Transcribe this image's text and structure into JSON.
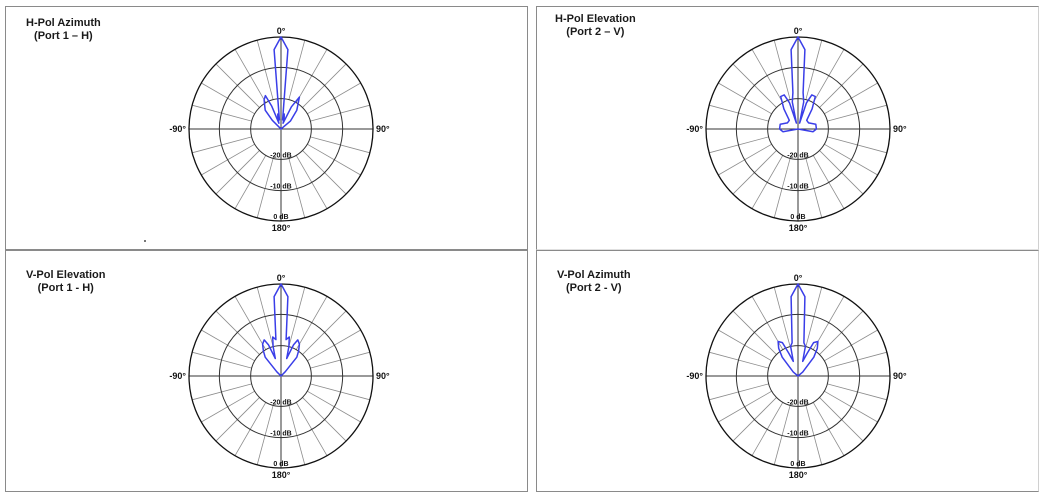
{
  "chart_data": [
    {
      "type": "polar",
      "title_lines": [
        "H-Pol Azimuth",
        "(Port 1 – H)"
      ],
      "angle_labels": {
        "top": "0°",
        "right": "90°",
        "bottom": "180°",
        "left": "-90°"
      },
      "ring_labels": [
        "-20 dB",
        "-10 dB",
        "0 dB"
      ],
      "rlim_db": [
        -30,
        0
      ],
      "pattern": {
        "angles_deg": [
          -90,
          -60,
          -45,
          -40,
          -30,
          -25,
          -22,
          -20,
          -15,
          -12,
          -10,
          -5,
          0,
          5,
          10,
          12,
          15,
          20,
          25,
          30,
          40,
          50,
          90
        ],
        "gain_db": [
          -30,
          -30,
          -26,
          -22,
          -19,
          -18,
          -22,
          -28,
          -26,
          -25,
          -27,
          -4,
          0,
          -4,
          -27,
          -25,
          -26,
          -28,
          -22,
          -18,
          -22,
          -26,
          -30
        ]
      }
    },
    {
      "type": "polar",
      "title_lines": [
        "H-Pol Elevation",
        "(Port 2 – V)"
      ],
      "angle_labels": {
        "top": "0°",
        "right": "90°",
        "bottom": "180°",
        "left": "-90°"
      },
      "ring_labels": [
        "-20 dB",
        "-10 dB",
        "0 dB"
      ],
      "rlim_db": [
        -30,
        0
      ],
      "pattern": {
        "angles_deg": [
          -115,
          -100,
          -90,
          -75,
          -60,
          -45,
          -35,
          -28,
          -22,
          -18,
          -15,
          -12,
          -8,
          -5,
          0,
          5,
          8,
          12,
          15,
          18,
          22,
          28,
          35,
          45,
          60,
          75,
          90,
          100,
          115
        ],
        "gain_db": [
          -30,
          -25,
          -24,
          -24,
          -26,
          -26,
          -22,
          -18,
          -18,
          -21,
          -28,
          -21,
          -18,
          -4,
          0,
          -4,
          -18,
          -21,
          -28,
          -21,
          -18,
          -18,
          -22,
          -26,
          -26,
          -24,
          -24,
          -25,
          -30
        ]
      }
    },
    {
      "type": "polar",
      "title_lines": [
        "V-Pol Elevation",
        "(Port 1 - H)"
      ],
      "angle_labels": {
        "top": "0°",
        "right": "90°",
        "bottom": "180°",
        "left": "-90°"
      },
      "ring_labels": [
        "-20 dB",
        "-10 dB",
        "0 dB"
      ],
      "rlim_db": [
        -30,
        0
      ],
      "pattern": {
        "angles_deg": [
          -90,
          -60,
          -45,
          -40,
          -35,
          -30,
          -25,
          -22,
          -18,
          -15,
          -12,
          -8,
          -5,
          0,
          5,
          8,
          12,
          15,
          18,
          22,
          25,
          30,
          35,
          40,
          45,
          60,
          90
        ],
        "gain_db": [
          -30,
          -30,
          -28,
          -22,
          -20,
          -18,
          -17,
          -19,
          -24,
          -20,
          -17,
          -18,
          -4,
          0,
          -4,
          -18,
          -17,
          -20,
          -24,
          -19,
          -17,
          -18,
          -20,
          -22,
          -28,
          -30,
          -30
        ]
      }
    },
    {
      "type": "polar",
      "title_lines": [
        "V-Pol Azimuth",
        "(Port 2 - V)"
      ],
      "angle_labels": {
        "top": "0°",
        "right": "90°",
        "bottom": "180°",
        "left": "-90°"
      },
      "ring_labels": [
        "-20 dB",
        "-10 dB",
        "0 dB"
      ],
      "rlim_db": [
        -30,
        0
      ],
      "pattern": {
        "angles_deg": [
          -90,
          -60,
          -50,
          -40,
          -35,
          -30,
          -25,
          -22,
          -18,
          -14,
          -10,
          -5,
          0,
          5,
          10,
          14,
          18,
          22,
          25,
          30,
          35,
          40,
          50,
          60,
          90
        ],
        "gain_db": [
          -30,
          -30,
          -28,
          -22,
          -19,
          -17,
          -18,
          -22,
          -25,
          -20,
          -19,
          -4,
          0,
          -4,
          -19,
          -20,
          -25,
          -22,
          -18,
          -17,
          -19,
          -22,
          -28,
          -30,
          -30
        ]
      }
    }
  ]
}
